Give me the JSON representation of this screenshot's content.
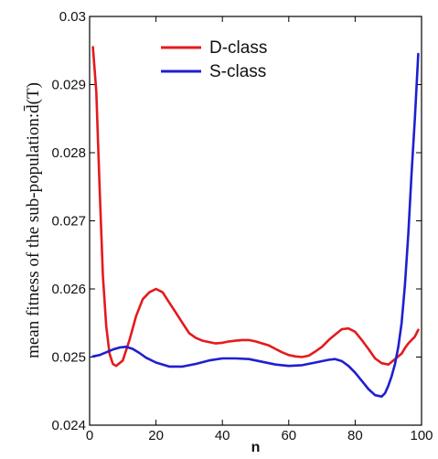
{
  "chart_data": {
    "type": "line",
    "title": "",
    "xlabel": "n",
    "ylabel": "mean fitness of the sub-population:d̄(T)",
    "xlim": [
      0,
      100
    ],
    "ylim": [
      0.024,
      0.03
    ],
    "xticks": [
      0,
      20,
      40,
      60,
      80,
      100
    ],
    "xtick_labels": [
      "0",
      "20",
      "40",
      "60",
      "80",
      "100"
    ],
    "yticks": [
      0.024,
      0.025,
      0.026,
      0.027,
      0.028,
      0.029,
      0.03
    ],
    "ytick_labels": [
      "0.024",
      "0.025",
      "0.026",
      "0.027",
      "0.028",
      "0.029",
      "0.03"
    ],
    "grid": false,
    "legend_position": "top-center",
    "series": [
      {
        "name": "D-class",
        "color": "#e41a1c",
        "x": [
          1,
          2,
          3,
          4,
          5,
          6,
          7,
          8,
          10,
          12,
          14,
          16,
          18,
          20,
          22,
          24,
          26,
          28,
          30,
          32,
          34,
          36,
          38,
          40,
          42,
          44,
          46,
          48,
          50,
          52,
          54,
          56,
          58,
          60,
          62,
          64,
          66,
          68,
          70,
          72,
          74,
          76,
          78,
          80,
          82,
          84,
          86,
          88,
          90,
          92,
          94,
          95,
          96,
          97,
          98,
          99
        ],
        "y": [
          0.02955,
          0.0289,
          0.0275,
          0.0262,
          0.02545,
          0.02505,
          0.0249,
          0.02487,
          0.02495,
          0.02525,
          0.0256,
          0.02585,
          0.02595,
          0.026,
          0.02595,
          0.0258,
          0.02565,
          0.0255,
          0.02535,
          0.02528,
          0.02524,
          0.02522,
          0.0252,
          0.02521,
          0.02523,
          0.02524,
          0.02525,
          0.02525,
          0.02523,
          0.0252,
          0.02517,
          0.02512,
          0.02507,
          0.02503,
          0.02501,
          0.025,
          0.02502,
          0.02508,
          0.02515,
          0.02525,
          0.02533,
          0.02541,
          0.02542,
          0.02537,
          0.02525,
          0.02512,
          0.02498,
          0.02491,
          0.02489,
          0.02497,
          0.02505,
          0.02513,
          0.0252,
          0.02525,
          0.0253,
          0.0254
        ]
      },
      {
        "name": "S-class",
        "color": "#1f1fd0",
        "x": [
          1,
          3,
          5,
          7,
          9,
          11,
          13,
          15,
          17,
          20,
          24,
          28,
          32,
          36,
          40,
          44,
          48,
          52,
          56,
          60,
          64,
          68,
          72,
          74,
          76,
          78,
          80,
          82,
          84,
          86,
          88,
          89,
          90,
          91,
          92,
          93,
          94,
          95,
          96,
          97,
          98,
          99
        ],
        "y": [
          0.02501,
          0.02503,
          0.02507,
          0.02511,
          0.02514,
          0.02515,
          0.02512,
          0.02506,
          0.02499,
          0.02492,
          0.02486,
          0.02486,
          0.0249,
          0.02495,
          0.02498,
          0.02498,
          0.02497,
          0.02493,
          0.02489,
          0.02487,
          0.02488,
          0.02492,
          0.02496,
          0.02497,
          0.02494,
          0.02487,
          0.02477,
          0.02465,
          0.02453,
          0.02444,
          0.02442,
          0.02447,
          0.02458,
          0.02472,
          0.0249,
          0.02515,
          0.0255,
          0.02605,
          0.0268,
          0.0277,
          0.0285,
          0.02945
        ]
      }
    ]
  }
}
